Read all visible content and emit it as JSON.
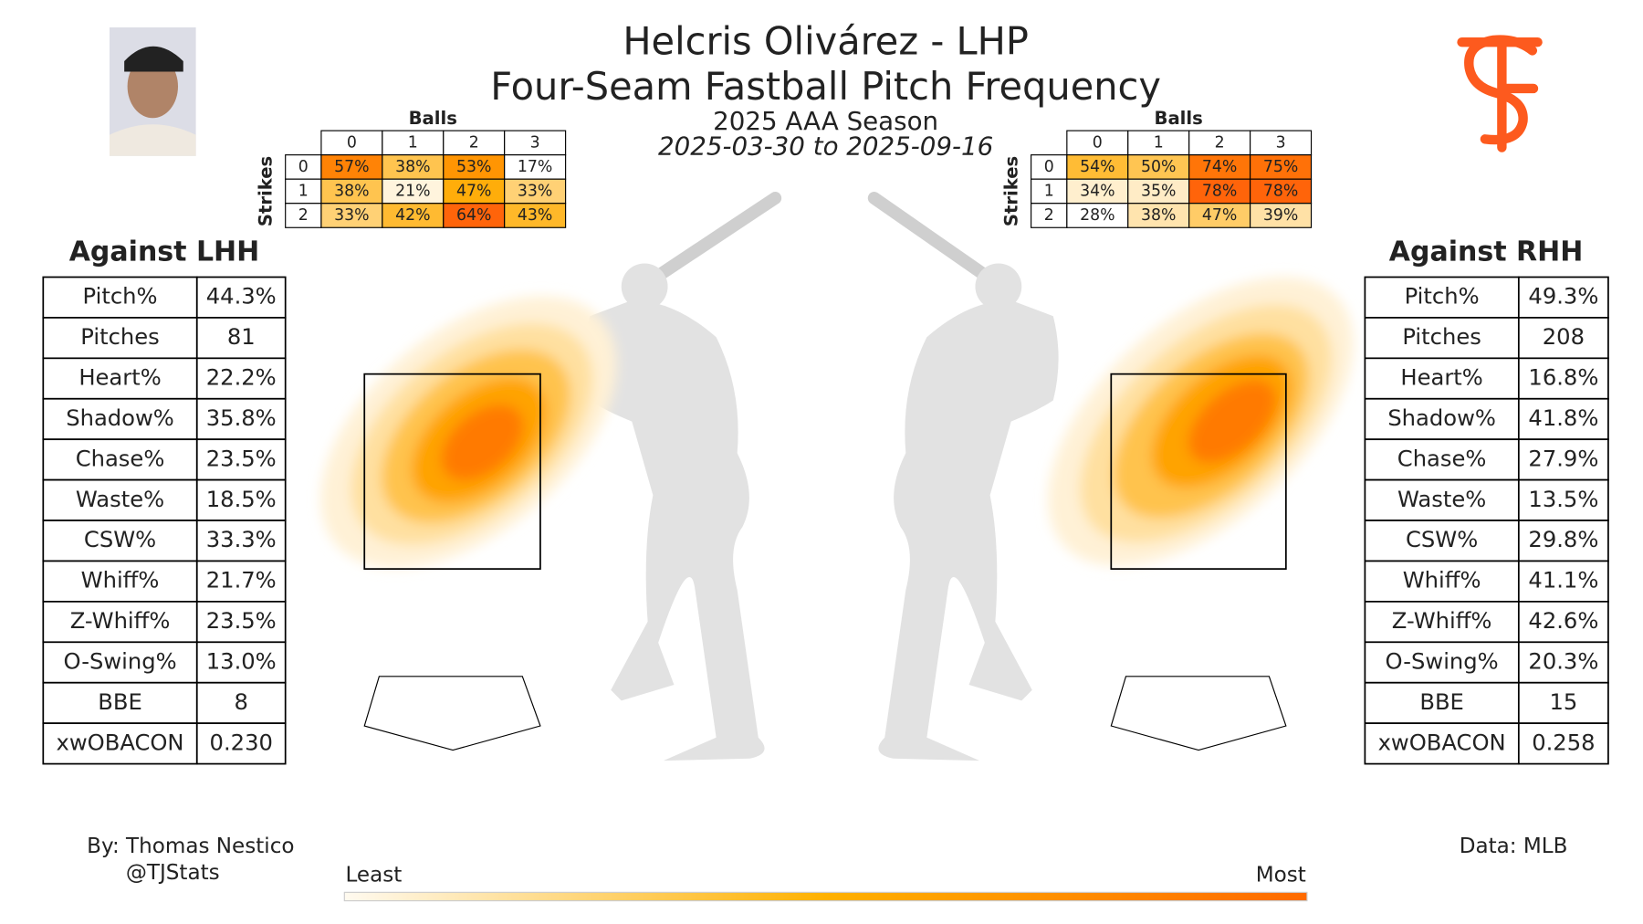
{
  "title": "Helcris Olivárez - LHP",
  "subtitle": "Four-Seam Fastball Pitch Frequency",
  "season": "2025 AAA Season",
  "date_range": "2025-03-30 to 2025-09-16",
  "count_tables": [
    {
      "columns_title": "Balls",
      "rows_title": "Strikes",
      "columns": [
        0,
        1,
        2,
        3
      ],
      "rows": [
        0,
        1,
        2
      ],
      "cells": [
        [
          {
            "value": 57,
            "label": "57%"
          },
          {
            "value": 38,
            "label": "38%"
          },
          {
            "value": 53,
            "label": "53%"
          },
          {
            "value": 17,
            "label": "17%"
          }
        ],
        [
          {
            "value": 38,
            "label": "38%"
          },
          {
            "value": 21,
            "label": "21%"
          },
          {
            "value": 47,
            "label": "47%"
          },
          {
            "value": 33,
            "label": "33%"
          }
        ],
        [
          {
            "value": 33,
            "label": "33%"
          },
          {
            "value": 42,
            "label": "42%"
          },
          {
            "value": 64,
            "label": "64%"
          },
          {
            "value": 43,
            "label": "43%"
          }
        ]
      ]
    },
    {
      "columns_title": "Balls",
      "rows_title": "Strikes",
      "columns": [
        0,
        1,
        2,
        3
      ],
      "rows": [
        0,
        1,
        2
      ],
      "cells": [
        [
          {
            "value": 54,
            "label": "54%"
          },
          {
            "value": 50,
            "label": "50%"
          },
          {
            "value": 74,
            "label": "74%"
          },
          {
            "value": 75,
            "label": "75%"
          }
        ],
        [
          {
            "value": 34,
            "label": "34%"
          },
          {
            "value": 35,
            "label": "35%"
          },
          {
            "value": 78,
            "label": "78%"
          },
          {
            "value": 78,
            "label": "78%"
          }
        ],
        [
          {
            "value": 28,
            "label": "28%"
          },
          {
            "value": 38,
            "label": "38%"
          },
          {
            "value": 47,
            "label": "47%"
          },
          {
            "value": 39,
            "label": "39%"
          }
        ]
      ]
    }
  ],
  "stat_tables": [
    {
      "title": "Against LHH",
      "rows": [
        [
          "Pitch%",
          "44.3%"
        ],
        [
          "Pitches",
          "81"
        ],
        [
          "Heart%",
          "22.2%"
        ],
        [
          "Shadow%",
          "35.8%"
        ],
        [
          "Chase%",
          "23.5%"
        ],
        [
          "Waste%",
          "18.5%"
        ],
        [
          "CSW%",
          "33.3%"
        ],
        [
          "Whiff%",
          "21.7%"
        ],
        [
          "Z-Whiff%",
          "23.5%"
        ],
        [
          "O-Swing%",
          "13.0%"
        ],
        [
          "BBE",
          "8"
        ],
        [
          "xwOBACON",
          "0.230"
        ]
      ]
    },
    {
      "title": "Against RHH",
      "rows": [
        [
          "Pitch%",
          "49.3%"
        ],
        [
          "Pitches",
          "208"
        ],
        [
          "Heart%",
          "16.8%"
        ],
        [
          "Shadow%",
          "41.8%"
        ],
        [
          "Chase%",
          "27.9%"
        ],
        [
          "Waste%",
          "13.5%"
        ],
        [
          "CSW%",
          "29.8%"
        ],
        [
          "Whiff%",
          "41.1%"
        ],
        [
          "Z-Whiff%",
          "42.6%"
        ],
        [
          "O-Swing%",
          "20.3%"
        ],
        [
          "BBE",
          "15"
        ],
        [
          "xwOBACON",
          "0.258"
        ]
      ]
    }
  ],
  "credit": "By: Thomas Nestico",
  "handle": "@TJStats",
  "source": "Data: MLB",
  "legend": {
    "low": "Least",
    "high": "Most"
  }
}
